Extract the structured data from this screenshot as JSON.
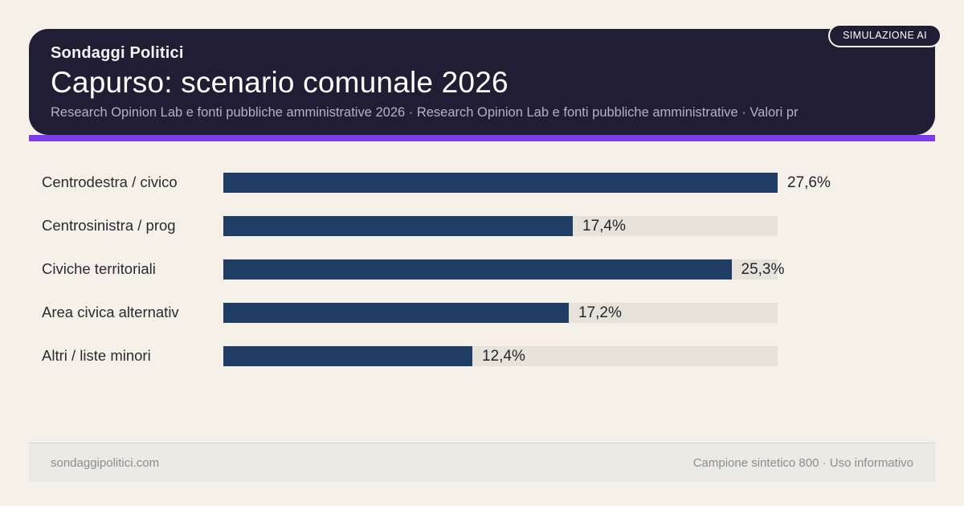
{
  "badge": {
    "label": "SIMULAZIONE AI"
  },
  "header": {
    "kicker": "Sondaggi Politici",
    "title": "Capurso: scenario comunale 2026",
    "subtitle": "Research Opinion Lab e fonti pubbliche amministrative 2026 · Research Opinion Lab e fonti pubbliche amministrative · Valori pr"
  },
  "chart_data": {
    "type": "bar",
    "orientation": "horizontal",
    "categories": [
      "Centrodestra / civico",
      "Centrosinistra / prog",
      "Civiche territoriali",
      "Area civica alternativ",
      "Altri / liste minori"
    ],
    "values": [
      27.6,
      17.4,
      25.3,
      17.2,
      12.4
    ],
    "value_labels": [
      "27,6%",
      "17,4%",
      "25,3%",
      "17,2%",
      "12,4%"
    ],
    "xlim": [
      0,
      27.6
    ],
    "grid": false,
    "legend": "none",
    "bar_color": "#203d66",
    "track_color": "#e7e3da"
  },
  "footer": {
    "left": "sondaggipolitici.com",
    "right": "Campione sintetico 800 · Uso informativo"
  },
  "colors": {
    "background": "#f5f1e8",
    "header_bg": "#211d35",
    "accent": "#7b3bea",
    "bar": "#203d66",
    "track": "#e7e3da",
    "footer_bg": "#eceae4"
  }
}
